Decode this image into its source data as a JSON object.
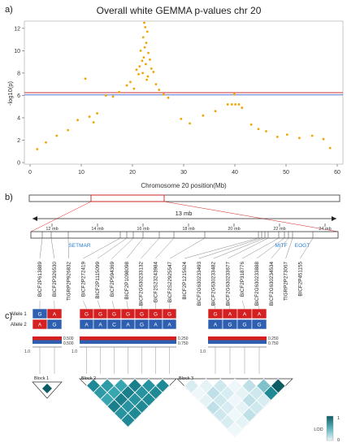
{
  "panels": {
    "a": "a)",
    "b": "b)",
    "c": "c)"
  },
  "colors": {
    "points": "#f0a500",
    "threshold_red": "#cc3333",
    "threshold_blue": "#5577dd",
    "allele_red": "#d42020",
    "allele_blue": "#2e5fb0",
    "ld_dark": "#0d5c63",
    "ld_light": "#e9f4f6",
    "gene_label": "#2a7fd4"
  },
  "chart_data": {
    "type": "scatter",
    "title": "Overall white GEMMA p-values chr 20",
    "xlabel": "Chromosome 20 position(Mb)",
    "ylabel": "-log10(p)",
    "xlim": [
      0,
      60
    ],
    "ylim": [
      0,
      12.5
    ],
    "x_ticks": [
      "0",
      "10",
      "20",
      "30",
      "40",
      "50",
      "60"
    ],
    "y_ticks": [
      "0",
      "2",
      "4",
      "6",
      "8",
      "10",
      "12"
    ],
    "thresholds": [
      6.25,
      6.05
    ],
    "grid": false,
    "legend": "none",
    "points": [
      [
        22.3,
        12.5
      ],
      [
        22.5,
        12.1
      ],
      [
        22.9,
        11.7
      ],
      [
        22.1,
        11.2
      ],
      [
        22.7,
        10.7
      ],
      [
        22.4,
        10.3
      ],
      [
        21.6,
        10.0
      ],
      [
        23.1,
        9.8
      ],
      [
        22.2,
        9.4
      ],
      [
        21.9,
        9.1
      ],
      [
        23.4,
        9.2
      ],
      [
        22.6,
        8.8
      ],
      [
        21.4,
        8.6
      ],
      [
        23.7,
        8.4
      ],
      [
        20.8,
        8.3
      ],
      [
        22.0,
        8.0
      ],
      [
        24.1,
        8.1
      ],
      [
        21.2,
        7.9
      ],
      [
        23.0,
        7.7
      ],
      [
        22.8,
        7.4
      ],
      [
        10.8,
        7.5
      ],
      [
        19.6,
        7.2
      ],
      [
        24.6,
        7.0
      ],
      [
        18.9,
        6.9
      ],
      [
        20.3,
        6.6
      ],
      [
        25.2,
        6.5
      ],
      [
        17.4,
        6.3
      ],
      [
        26.1,
        6.1
      ],
      [
        16.2,
        5.9
      ],
      [
        27.0,
        5.8
      ],
      [
        14.8,
        6.0
      ],
      [
        38.6,
        5.2
      ],
      [
        39.4,
        5.2
      ],
      [
        40.1,
        5.2
      ],
      [
        40.8,
        5.2
      ],
      [
        39.9,
        6.1
      ],
      [
        41.4,
        4.9
      ],
      [
        36.2,
        4.6
      ],
      [
        33.8,
        4.2
      ],
      [
        13.1,
        4.4
      ],
      [
        11.6,
        4.1
      ],
      [
        9.3,
        3.8
      ],
      [
        12.4,
        3.6
      ],
      [
        29.5,
        3.9
      ],
      [
        31.2,
        3.5
      ],
      [
        43.2,
        3.4
      ],
      [
        44.6,
        3.0
      ],
      [
        46.1,
        2.8
      ],
      [
        7.4,
        2.9
      ],
      [
        5.2,
        2.4
      ],
      [
        48.3,
        2.3
      ],
      [
        50.2,
        2.5
      ],
      [
        52.6,
        2.2
      ],
      [
        55.1,
        2.4
      ],
      [
        57.3,
        2.1
      ],
      [
        3.1,
        1.8
      ],
      [
        1.4,
        1.2
      ],
      [
        58.6,
        1.3
      ]
    ]
  },
  "region": {
    "span_label": "13 mb",
    "ticks": [
      "12 mb",
      "14 mb",
      "16 mb",
      "18 mb",
      "20 mb",
      "22 mb",
      "24 mb"
    ],
    "genes": [
      "SETMAR",
      "MITF",
      "EOGT"
    ],
    "markers": [
      "BICF2P613889",
      "BICF2P326530",
      "TIGRP2P926832",
      "BICF2P272419",
      "BICF2P1115099",
      "BICF2P594369",
      "BICF2P1098098",
      "BICF2G630233132",
      "BICF2S23243984",
      "BICF2S22925547",
      "BICF2P1215624",
      "BICF2G630233493",
      "BICF2G630233482",
      "BICF2G630233677",
      "BICF2P318776",
      "BICF2G630233888",
      "BICF2G630234534",
      "TIGRP2P273067",
      "BICF2P451155"
    ]
  },
  "haplotypes": {
    "allele1_label": "Allele 1",
    "allele2_label": "Allele 2",
    "block1": {
      "allele1": [
        "G",
        "A"
      ],
      "allele2": [
        "A",
        "G"
      ],
      "freq_top": "0.500",
      "freq_bottom": "0.500",
      "freq_total": "1.0",
      "label": "Block 1"
    },
    "block2": {
      "allele1": [
        "G",
        "G",
        "G",
        "G",
        "G",
        "G",
        "G"
      ],
      "allele2": [
        "A",
        "A",
        "C",
        "A",
        "G",
        "A",
        "A"
      ],
      "freq_top": "0.250",
      "freq_bottom": "0.750",
      "freq_total": "1.0",
      "label": "Block 2"
    },
    "block3": {
      "allele1": [
        "G",
        "A",
        "A",
        "A"
      ],
      "allele2": [
        "A",
        "G",
        "G",
        "G"
      ],
      "freq_top": "0.250",
      "freq_bottom": "0.750",
      "freq_total": "1.0",
      "label": "Block 3"
    },
    "lod_label": "LOD",
    "lod_max": "1",
    "lod_min": "0"
  }
}
